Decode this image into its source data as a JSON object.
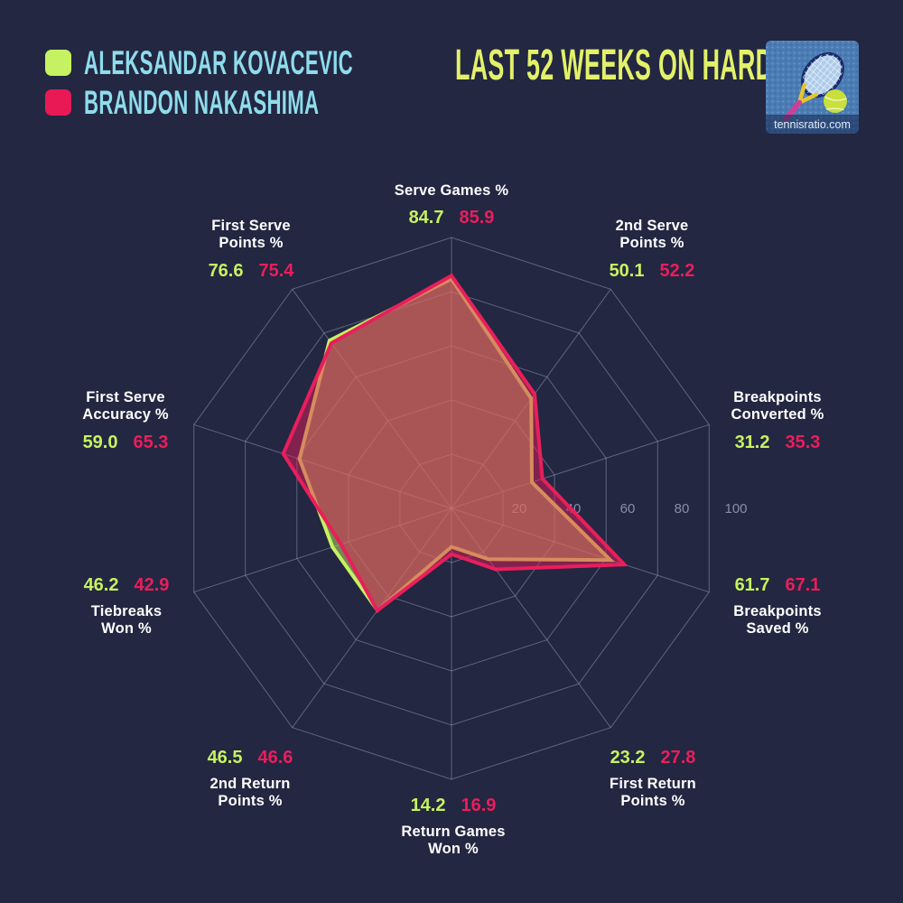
{
  "header": {
    "title": "LAST 52 WEEKS ON HARD",
    "legend": [
      {
        "name": "ALEKSANDAR KOVACEVIC",
        "color": "#c6f261"
      },
      {
        "name": "BRANDON NAKASHIMA",
        "color": "#e81955"
      }
    ],
    "logo_text": "tennisratio.com"
  },
  "chart_data": {
    "type": "radar",
    "title": "LAST 52 WEEKS ON HARD",
    "max": 100,
    "ticks": [
      20,
      40,
      60,
      80,
      100
    ],
    "grid_shape": "decagon",
    "legend_position": "top-left",
    "axes": [
      {
        "label": "Serve Games %",
        "kovacevic": "84.7",
        "nakashima": "85.9"
      },
      {
        "label": "2nd Serve\nPoints %",
        "kovacevic": "50.1",
        "nakashima": "52.2"
      },
      {
        "label": "Breakpoints\nConverted %",
        "kovacevic": "31.2",
        "nakashima": "35.3"
      },
      {
        "label": "Breakpoints\nSaved %",
        "kovacevic": "61.7",
        "nakashima": "67.1"
      },
      {
        "label": "First Return\nPoints %",
        "kovacevic": "23.2",
        "nakashima": "27.8"
      },
      {
        "label": "Return Games\nWon %",
        "kovacevic": "14.2",
        "nakashima": "16.9"
      },
      {
        "label": "2nd Return\nPoints %",
        "kovacevic": "46.5",
        "nakashima": "46.6"
      },
      {
        "label": "Tiebreaks\nWon %",
        "kovacevic": "46.2",
        "nakashima": "42.9"
      },
      {
        "label": "First Serve\nAccuracy %",
        "kovacevic": "59.0",
        "nakashima": "65.3"
      },
      {
        "label": "First Serve\nPoints %",
        "kovacevic": "76.6",
        "nakashima": "75.4"
      }
    ],
    "series": [
      {
        "name": "ALEKSANDAR KOVACEVIC",
        "color": "#c6f261",
        "values": [
          84.7,
          50.1,
          31.2,
          61.7,
          23.2,
          14.2,
          46.5,
          46.2,
          59.0,
          76.6
        ]
      },
      {
        "name": "BRANDON NAKASHIMA",
        "color": "#e91e5c",
        "values": [
          85.9,
          52.2,
          35.3,
          67.1,
          27.8,
          16.9,
          46.6,
          42.9,
          65.3,
          75.4
        ]
      }
    ]
  }
}
